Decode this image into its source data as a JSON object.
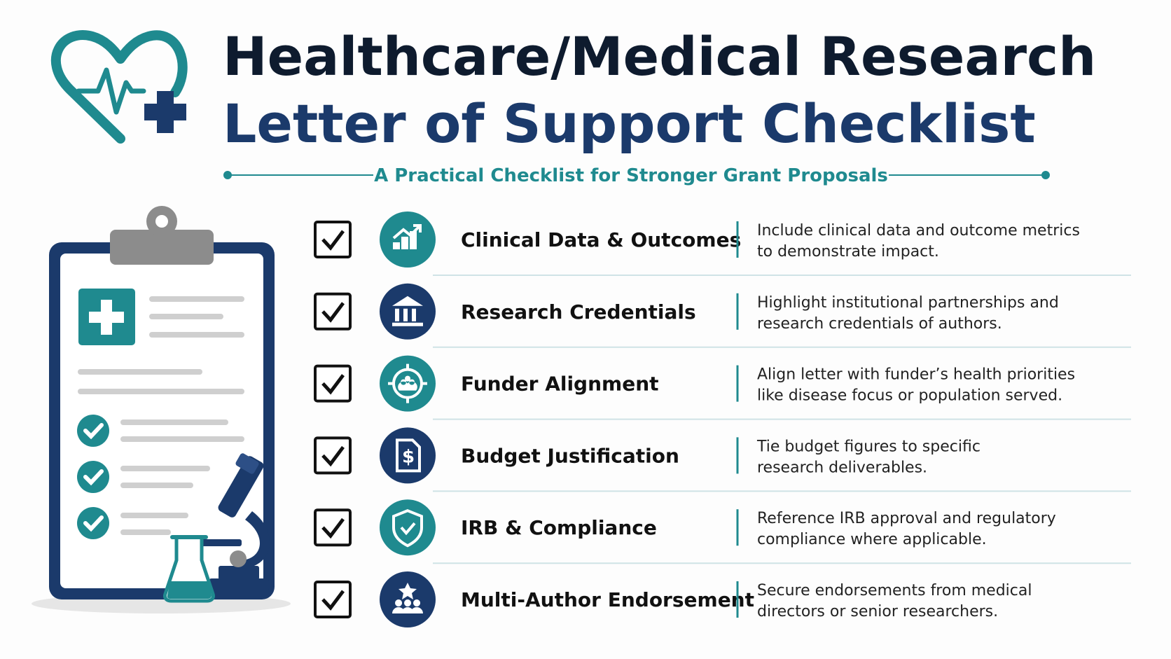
{
  "header": {
    "title_line1": "Healthcare/Medical Research",
    "title_line2": "Letter of Support Checklist",
    "subtitle": "A Practical Checklist for Stronger Grant Proposals"
  },
  "items": [
    {
      "title": "Clinical Data & Outcomes",
      "description": [
        "Include clinical data and outcome metrics",
        "to demonstrate impact."
      ]
    },
    {
      "title": "Research Credentials",
      "description": [
        "Highlight institutional partnerships and",
        "research credentials of authors."
      ]
    },
    {
      "title": "Funder Alignment",
      "description": [
        "Align letter with funder’s health priorities",
        "like disease focus or population served."
      ]
    },
    {
      "title": "Budget Justification",
      "description": [
        "Tie budget figures to specific",
        "research deliverables."
      ]
    },
    {
      "title": "IRB & Compliance",
      "description": [
        "Reference IRB approval and regulatory",
        "compliance where applicable."
      ]
    },
    {
      "title": "Multi-Author Endorsement",
      "description": [
        "Secure endorsements from medical",
        "directors or senior researchers."
      ]
    }
  ]
}
